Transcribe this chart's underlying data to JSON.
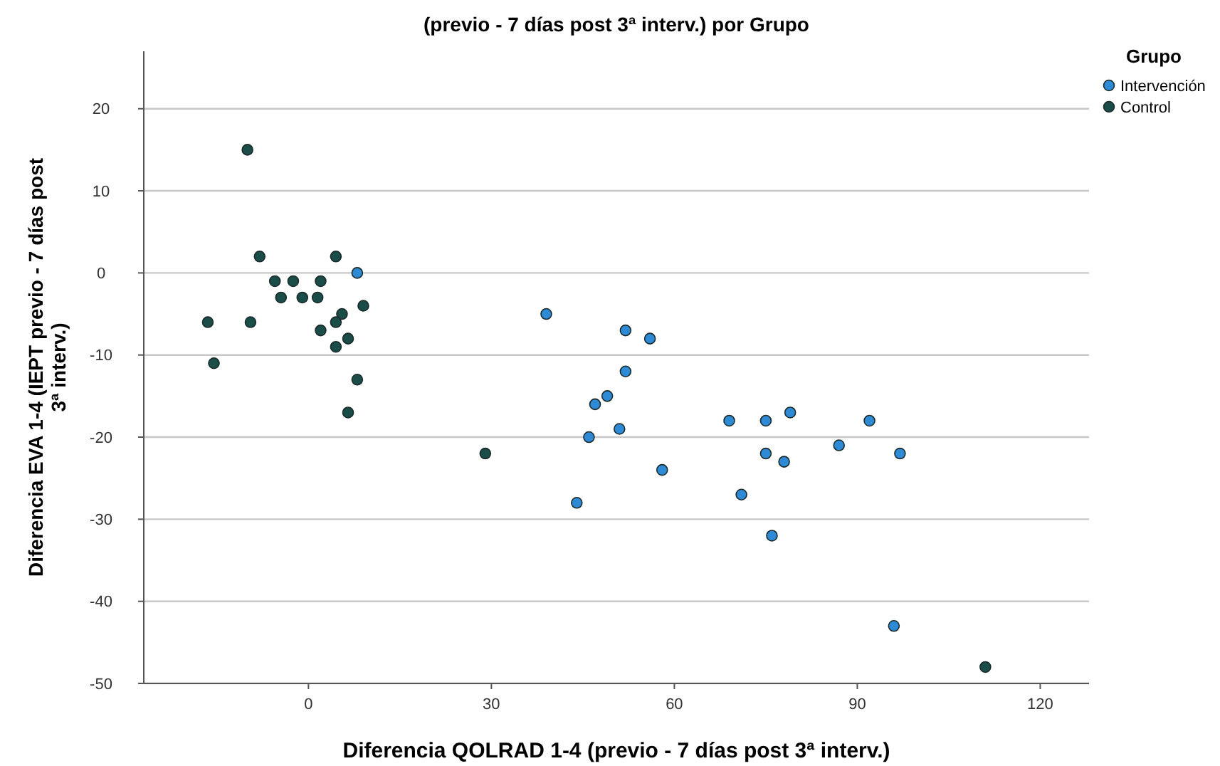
{
  "chart_data": {
    "type": "scatter",
    "title": "(previo - 7 días post 3ª interv.) por Grupo",
    "xlabel": "Diferencia QOLRAD 1-4 (previo - 7 días post 3ª interv.)",
    "ylabel": "Diferencia EVA 1-4 (IEPT previo - 7 días post 3ª interv.)",
    "legend_title": "Grupo",
    "legend": "top right",
    "grid": "y",
    "marker": "circle",
    "xlim": [
      -27,
      128
    ],
    "ylim": [
      -50,
      27
    ],
    "xticks": [
      0,
      30,
      60,
      90,
      120
    ],
    "yticks": [
      -50,
      -40,
      -30,
      -20,
      -10,
      0,
      10,
      20
    ],
    "series": [
      {
        "name": "Intervención",
        "color": "#2f8ad6",
        "x": [
          8,
          39,
          52,
          56,
          52,
          49,
          47,
          69,
          75,
          79,
          92,
          51,
          46,
          87,
          75,
          97,
          78,
          58,
          71,
          44,
          76,
          96
        ],
        "values": [
          0,
          -5,
          -7,
          -8,
          -12,
          -15,
          -16,
          -18,
          -18,
          -17,
          -18,
          -19,
          -20,
          -21,
          -22,
          -22,
          -23,
          -24,
          -27,
          -28,
          -32,
          -43
        ]
      },
      {
        "name": "Control",
        "color": "#1b4d48",
        "x": [
          -10,
          -8,
          4.5,
          -5.5,
          -2.5,
          2,
          -4.5,
          -1,
          1.5,
          9,
          5.5,
          4.5,
          -16.5,
          -9.5,
          2,
          6.5,
          4.5,
          -15.5,
          8,
          6.5,
          29,
          111
        ],
        "values": [
          15,
          2,
          2,
          -1,
          -1,
          -1,
          -3,
          -3,
          -3,
          -4,
          -5,
          -6,
          -6,
          -6,
          -7,
          -8,
          -9,
          -11,
          -13,
          -17,
          -22,
          -48
        ]
      }
    ]
  }
}
